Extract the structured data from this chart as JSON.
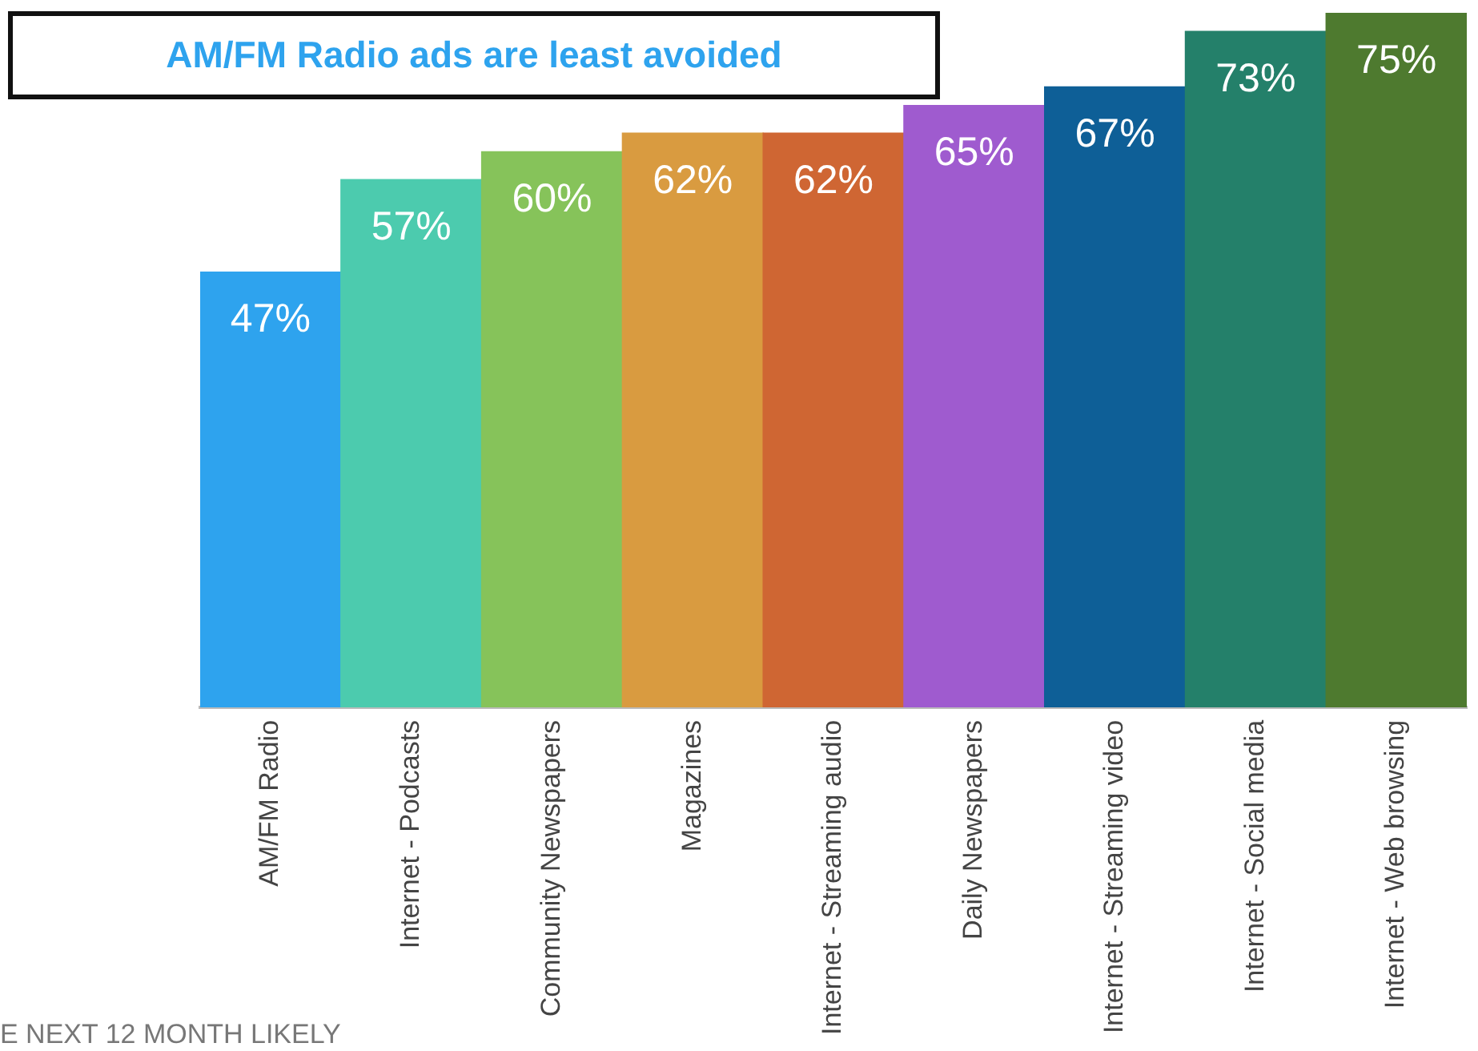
{
  "chart_data": {
    "type": "bar",
    "title": "AM/FM Radio ads are least avoided",
    "categories": [
      "AM/FM Radio",
      "Internet - Podcasts",
      "Community Newspapers",
      "Magazines",
      "Internet - Streaming audio",
      "Daily Newspapers",
      "Internet - Streaming video",
      "Internet - Social media",
      "Internet - Web browsing"
    ],
    "values": [
      47,
      57,
      60,
      62,
      62,
      65,
      67,
      73,
      75
    ],
    "colors": [
      "#2ea3ee",
      "#4ccbae",
      "#86c35a",
      "#d99b40",
      "#cf6633",
      "#9f5bcf",
      "#0e5f97",
      "#24806a",
      "#4e7a2f"
    ],
    "tick_labels": "x",
    "data_labels": true,
    "value_labels": [
      "47%",
      "57%",
      "60%",
      "62%",
      "62%",
      "65%",
      "67%",
      "73%",
      "75%"
    ],
    "grid": false,
    "legend": false,
    "annotations": [
      "E NEXT 12 MONTH LIKELY"
    ]
  }
}
